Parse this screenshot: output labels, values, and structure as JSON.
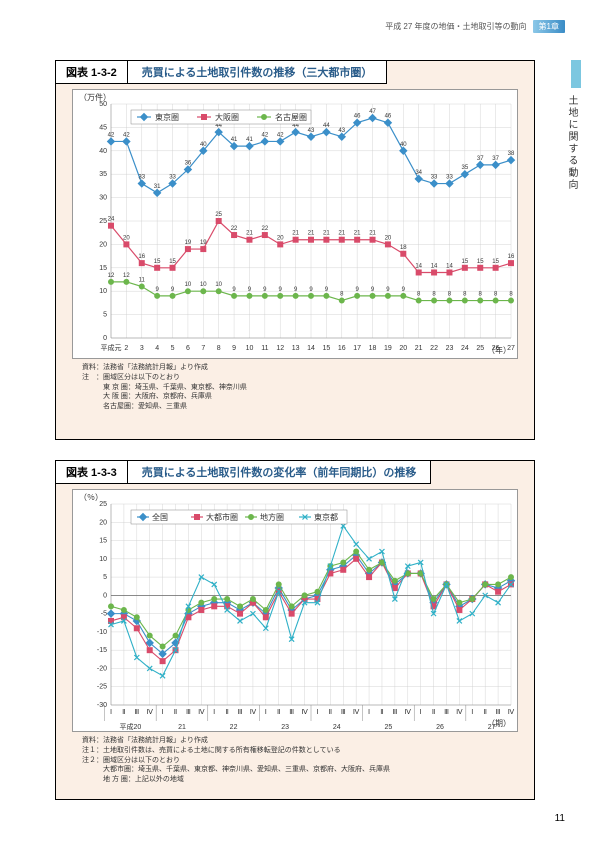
{
  "header": {
    "text": "平成 27 年度の地価・土地取引等の動向",
    "chapter": "第1章"
  },
  "side_tab": "土地に関する動向",
  "page_number": "11",
  "chart1": {
    "type": "line",
    "title_no": "図表 1-3-2",
    "title": "売買による土地取引件数の推移（三大都市圏）",
    "y_unit": "（万件）",
    "x_unit": "（年）",
    "x_labels": [
      "平成元",
      "2",
      "3",
      "4",
      "5",
      "6",
      "7",
      "8",
      "9",
      "10",
      "11",
      "12",
      "13",
      "14",
      "15",
      "16",
      "17",
      "18",
      "19",
      "20",
      "21",
      "22",
      "23",
      "24",
      "25",
      "26",
      "27"
    ],
    "ylim": [
      0,
      50
    ],
    "ytick_step": 5,
    "series": [
      {
        "name": "東京圏",
        "color": "#3b8fc9",
        "marker": "diamond",
        "values": [
          42,
          42,
          33,
          31,
          33,
          36,
          40,
          44,
          41,
          41,
          42,
          42,
          44,
          43,
          44,
          43,
          46,
          47,
          46,
          40,
          34,
          33,
          33,
          35,
          37,
          37,
          38
        ],
        "labels": [
          "42",
          "42",
          "33",
          "31",
          "33",
          "36",
          "40",
          "44",
          "41",
          "41",
          "42",
          "42",
          "44",
          "43",
          "44",
          "43",
          "46",
          "47",
          "46",
          "40",
          "34",
          "33",
          "33",
          "35",
          "37",
          "37",
          "38"
        ]
      },
      {
        "name": "大阪圏",
        "color": "#d94b6a",
        "marker": "square",
        "values": [
          24,
          20,
          16,
          15,
          15,
          19,
          19,
          25,
          22,
          21,
          22,
          20,
          21,
          21,
          21,
          21,
          21,
          21,
          20,
          18,
          14,
          14,
          14,
          15,
          15,
          15,
          16
        ],
        "labels": [
          "24",
          "20",
          "16",
          "15",
          "15",
          "19",
          "19",
          "25",
          "22",
          "21",
          "22",
          "20",
          "21",
          "21",
          "21",
          "21",
          "21",
          "21",
          "20",
          "18",
          "14",
          "14",
          "14",
          "15",
          "15",
          "15",
          "16"
        ]
      },
      {
        "name": "名古屋圏",
        "color": "#6cb64c",
        "marker": "circle",
        "values": [
          12,
          12,
          11,
          9,
          9,
          10,
          10,
          10,
          9,
          9,
          9,
          9,
          9,
          9,
          9,
          8,
          9,
          9,
          9,
          9,
          8,
          8,
          8,
          8,
          8,
          8,
          8
        ],
        "labels": [
          "12",
          "12",
          "11",
          "9",
          "9",
          "10",
          "10",
          "10",
          "9",
          "9",
          "9",
          "9",
          "9",
          "9",
          "9",
          "8",
          "9",
          "9",
          "9",
          "9",
          "8",
          "8",
          "8",
          "8",
          "8",
          "8",
          "8"
        ]
      }
    ],
    "notes": [
      "資料：法務省「法務統計月報」より作成",
      "注　：圏域区分は以下のとおり",
      "　　　東 京 圏：埼玉県、千葉県、東京都、神奈川県",
      "　　　大 阪 圏：大阪府、京都府、兵庫県",
      "　　　名古屋圏：愛知県、三重県"
    ]
  },
  "chart2": {
    "type": "line",
    "title_no": "図表 1-3-3",
    "title": "売買による土地取引件数の変化率（前年同期比）の推移",
    "y_unit": "（％）",
    "x_unit": "（期）",
    "x_years": [
      "平成20",
      "21",
      "22",
      "23",
      "24",
      "25",
      "26",
      "27"
    ],
    "x_q": [
      "Ⅰ",
      "Ⅱ",
      "Ⅲ",
      "Ⅳ"
    ],
    "ylim": [
      -30,
      25
    ],
    "ytick_step": 5,
    "series": [
      {
        "name": "全国",
        "color": "#3b8fc9",
        "marker": "diamond",
        "values": [
          -5,
          -5,
          -7,
          -13,
          -16,
          -13,
          -5,
          -3,
          -2,
          -2,
          -4,
          -2,
          -5,
          2,
          -4,
          -1,
          0,
          7,
          8,
          11,
          6,
          9,
          3,
          6,
          6,
          -2,
          3,
          -3,
          -1,
          3,
          2,
          4
        ]
      },
      {
        "name": "大都市圏",
        "color": "#d94b6a",
        "marker": "square",
        "values": [
          -7,
          -6,
          -9,
          -15,
          -18,
          -15,
          -6,
          -4,
          -3,
          -3,
          -5,
          -2,
          -6,
          1,
          -5,
          -1,
          -1,
          6,
          7,
          10,
          5,
          9,
          2,
          6,
          6,
          -3,
          3,
          -4,
          -1,
          3,
          1,
          3
        ]
      },
      {
        "name": "地方圏",
        "color": "#6cb64c",
        "marker": "circle",
        "values": [
          -3,
          -4,
          -6,
          -11,
          -14,
          -11,
          -4,
          -2,
          -1,
          -1,
          -3,
          -1,
          -4,
          3,
          -3,
          0,
          1,
          8,
          9,
          12,
          7,
          9,
          4,
          6,
          6,
          -1,
          3,
          -2,
          -1,
          3,
          3,
          5
        ]
      },
      {
        "name": "東京都",
        "color": "#2fb0c7",
        "marker": "x",
        "values": [
          -8,
          -7,
          -17,
          -20,
          -22,
          -15,
          -3,
          5,
          3,
          -4,
          -7,
          -5,
          -9,
          1,
          -12,
          -2,
          -2,
          8,
          19,
          14,
          10,
          12,
          -1,
          8,
          9,
          -5,
          3,
          -7,
          -5,
          0,
          -2,
          3
        ]
      }
    ],
    "notes": [
      "資料：法務省「法務統計月報」より作成",
      "注１：土地取引件数は、売買による土地に関する所有権移転登記の件数としている",
      "注２：圏域区分は以下のとおり",
      "　　　大都市圏：埼玉県、千葉県、東京都、神奈川県、愛知県、三重県、京都府、大阪府、兵庫県",
      "　　　地 方 圏：上記以外の地域"
    ]
  }
}
